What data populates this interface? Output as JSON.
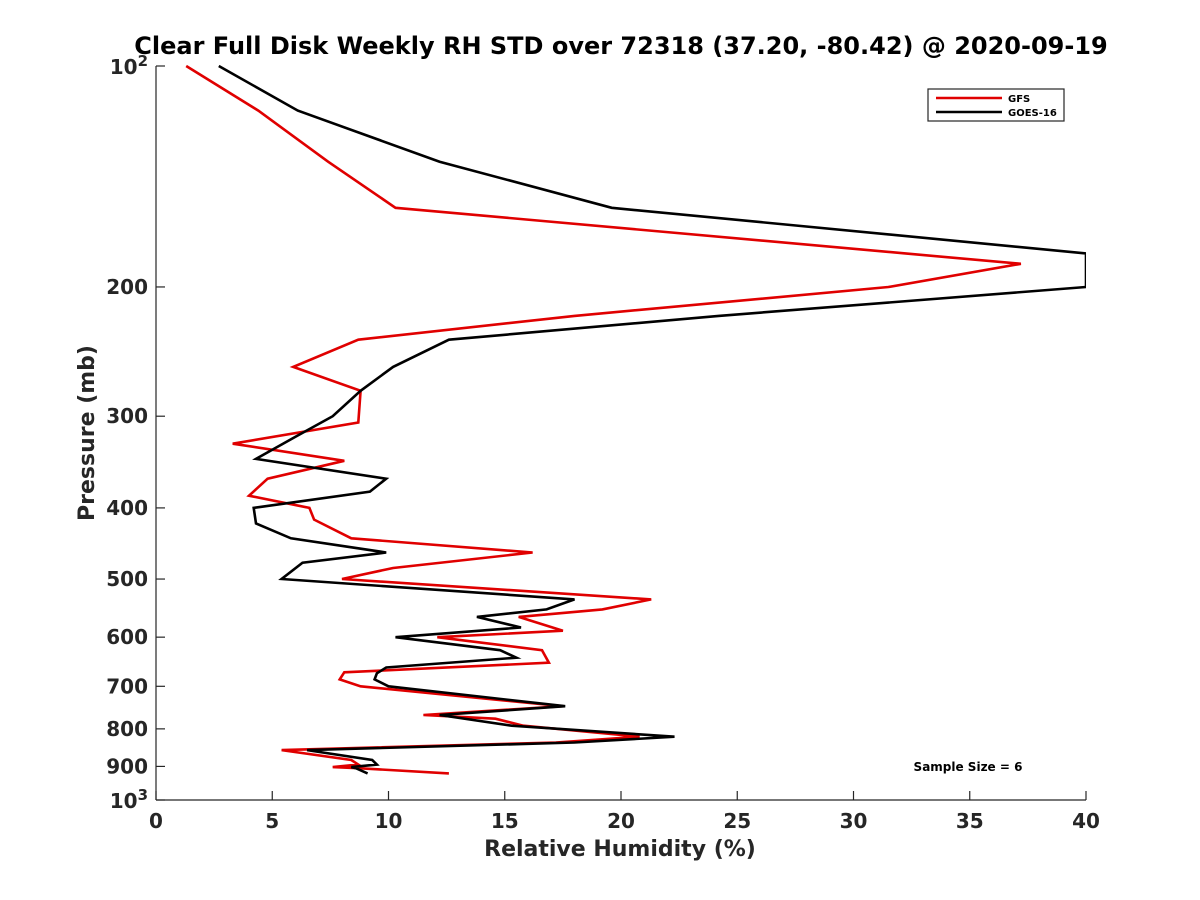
{
  "chart_data": {
    "type": "line",
    "title": "Clear Full Disk Weekly RH STD over 72318 (37.20, -80.42) @ 2020-09-19",
    "xlabel": "Relative Humidity (%)",
    "ylabel": "Pressure (mb)",
    "xlim": [
      0,
      40
    ],
    "ylim": [
      100,
      1000
    ],
    "y_scale": "log",
    "y_reversed": true,
    "x_ticks": [
      "0",
      "5",
      "10",
      "15",
      "20",
      "25",
      "30",
      "35",
      "40"
    ],
    "y_ticks": [
      {
        "value": 100,
        "base": "10",
        "exp": "2"
      },
      {
        "value": 200,
        "label": "200"
      },
      {
        "value": 300,
        "label": "300"
      },
      {
        "value": 400,
        "label": "400"
      },
      {
        "value": 500,
        "label": "500"
      },
      {
        "value": 600,
        "label": "600"
      },
      {
        "value": 700,
        "label": "700"
      },
      {
        "value": 800,
        "label": "800"
      },
      {
        "value": 900,
        "label": "900"
      },
      {
        "value": 1000,
        "base": "10",
        "exp": "3"
      }
    ],
    "grid": false,
    "legend_position": "top-right",
    "annotation": "Sample Size = 6",
    "series": [
      {
        "name": "GFS",
        "color": "#e00000",
        "points": [
          [
            1.3,
            100
          ],
          [
            4.4,
            115
          ],
          [
            7.4,
            135
          ],
          [
            10.3,
            156
          ],
          [
            37.2,
            186
          ],
          [
            31.5,
            200
          ],
          [
            18.0,
            219
          ],
          [
            8.7,
            236
          ],
          [
            5.9,
            257
          ],
          [
            8.8,
            277
          ],
          [
            8.7,
            306
          ],
          [
            3.3,
            327
          ],
          [
            8.1,
            345
          ],
          [
            4.8,
            365
          ],
          [
            4.0,
            385
          ],
          [
            6.6,
            400
          ],
          [
            6.8,
            415
          ],
          [
            8.4,
            440
          ],
          [
            16.2,
            460
          ],
          [
            10.2,
            483
          ],
          [
            8.0,
            500
          ],
          [
            21.3,
            533
          ],
          [
            19.2,
            550
          ],
          [
            15.6,
            563
          ],
          [
            17.5,
            588
          ],
          [
            12.1,
            600
          ],
          [
            16.6,
            625
          ],
          [
            16.9,
            650
          ],
          [
            8.1,
            670
          ],
          [
            7.9,
            685
          ],
          [
            8.8,
            700
          ],
          [
            17.5,
            745
          ],
          [
            11.5,
            766
          ],
          [
            14.6,
            775
          ],
          [
            15.8,
            792
          ],
          [
            20.8,
            820
          ],
          [
            17.2,
            835
          ],
          [
            5.4,
            855
          ],
          [
            8.4,
            882
          ],
          [
            8.7,
            895
          ],
          [
            7.6,
            902
          ],
          [
            8.7,
            905
          ],
          [
            12.6,
            920
          ]
        ]
      },
      {
        "name": "GOES-16",
        "color": "#000000",
        "points": [
          [
            2.7,
            100
          ],
          [
            6.1,
            115
          ],
          [
            12.2,
            135
          ],
          [
            19.6,
            156
          ],
          [
            40.0,
            180
          ],
          [
            40.0,
            200
          ],
          [
            24.2,
            219
          ],
          [
            12.6,
            236
          ],
          [
            10.2,
            257
          ],
          [
            8.8,
            277
          ],
          [
            7.6,
            300
          ],
          [
            6.0,
            320
          ],
          [
            4.3,
            343
          ],
          [
            9.9,
            365
          ],
          [
            9.2,
            380
          ],
          [
            4.2,
            400
          ],
          [
            4.3,
            420
          ],
          [
            5.8,
            440
          ],
          [
            9.9,
            460
          ],
          [
            6.3,
            475
          ],
          [
            5.4,
            500
          ],
          [
            18.0,
            533
          ],
          [
            16.8,
            550
          ],
          [
            13.8,
            563
          ],
          [
            15.7,
            582
          ],
          [
            10.3,
            600
          ],
          [
            14.8,
            625
          ],
          [
            15.5,
            640
          ],
          [
            9.9,
            660
          ],
          [
            9.5,
            672
          ],
          [
            9.4,
            685
          ],
          [
            10.0,
            700
          ],
          [
            17.6,
            745
          ],
          [
            12.2,
            766
          ],
          [
            15.3,
            792
          ],
          [
            22.3,
            820
          ],
          [
            18.0,
            835
          ],
          [
            6.5,
            855
          ],
          [
            9.3,
            882
          ],
          [
            9.5,
            895
          ],
          [
            8.4,
            902
          ],
          [
            8.6,
            905
          ],
          [
            9.1,
            920
          ]
        ]
      }
    ]
  }
}
